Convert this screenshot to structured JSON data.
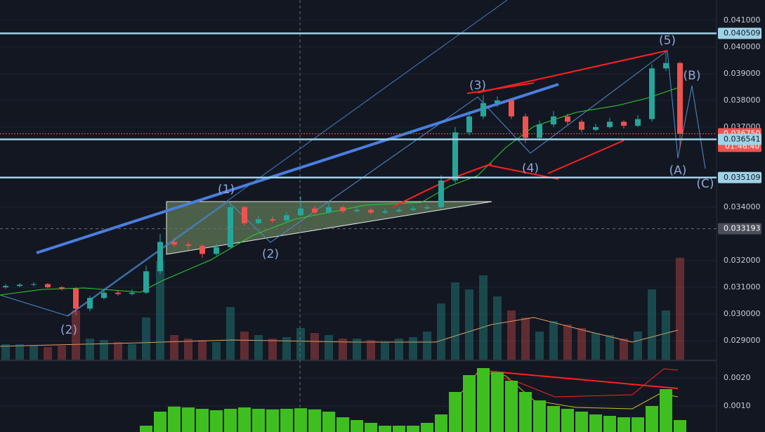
{
  "chart_data": [
    {
      "type": "candlestick",
      "open": [
        0.031,
        0.03105,
        0.0311,
        0.03112,
        0.031,
        0.03095,
        0.0302,
        0.0306,
        0.0308,
        0.03075,
        0.0308,
        0.0316,
        0.0327,
        0.0326,
        0.03255,
        0.03225,
        0.0325,
        0.034,
        0.0334,
        0.03355,
        0.0335,
        0.0337,
        0.03395,
        0.0338,
        0.034,
        0.03385,
        0.0339,
        0.0338,
        0.03385,
        0.0339,
        0.03395,
        0.034,
        0.035,
        0.0368,
        0.0374,
        0.0379,
        0.038,
        0.0374,
        0.0366,
        0.0371,
        0.0374,
        0.0372,
        0.0369,
        0.037,
        0.0372,
        0.03705,
        0.0373,
        0.0392,
        0.0394
      ],
      "high": [
        0.03112,
        0.03115,
        0.03118,
        0.03116,
        0.03105,
        0.031,
        0.03068,
        0.0309,
        0.03088,
        0.03092,
        0.0318,
        0.033,
        0.03285,
        0.0327,
        0.03262,
        0.03262,
        0.03415,
        0.03405,
        0.03368,
        0.03365,
        0.03382,
        0.0344,
        0.03405,
        0.0342,
        0.03408,
        0.034,
        0.03398,
        0.03395,
        0.034,
        0.03405,
        0.0341,
        0.0352,
        0.037,
        0.0376,
        0.0382,
        0.03815,
        0.03808,
        0.0375,
        0.03725,
        0.0376,
        0.0375,
        0.03728,
        0.03712,
        0.03735,
        0.03725,
        0.03745,
        0.03935,
        0.0398,
        0.03945
      ],
      "low": [
        0.03094,
        0.031,
        0.03104,
        0.03096,
        0.03088,
        0.02995,
        0.0301,
        0.03055,
        0.03068,
        0.0307,
        0.03075,
        0.0315,
        0.0325,
        0.0324,
        0.0321,
        0.03218,
        0.03245,
        0.0333,
        0.03335,
        0.0334,
        0.03345,
        0.03365,
        0.0337,
        0.03375,
        0.03378,
        0.0338,
        0.03372,
        0.03375,
        0.0338,
        0.03385,
        0.0339,
        0.03395,
        0.0349,
        0.0367,
        0.0373,
        0.03775,
        0.0373,
        0.0364,
        0.0365,
        0.037,
        0.03705,
        0.0368,
        0.03685,
        0.03695,
        0.03695,
        0.037,
        0.0372,
        0.0391,
        0.0362
      ],
      "close": [
        0.03105,
        0.0311,
        0.03112,
        0.031,
        0.03095,
        0.0302,
        0.0306,
        0.0308,
        0.03075,
        0.0308,
        0.0316,
        0.0327,
        0.0326,
        0.03255,
        0.03225,
        0.0325,
        0.034,
        0.0334,
        0.03355,
        0.0335,
        0.0337,
        0.03395,
        0.0338,
        0.034,
        0.03385,
        0.0339,
        0.0338,
        0.03385,
        0.0339,
        0.03395,
        0.034,
        0.035,
        0.0368,
        0.0374,
        0.0379,
        0.038,
        0.0374,
        0.0366,
        0.0371,
        0.0374,
        0.0372,
        0.0369,
        0.037,
        0.0372,
        0.03705,
        0.0373,
        0.0392,
        0.0394,
        0.03675
      ],
      "volume": [
        22,
        22,
        20,
        18,
        20,
        70,
        30,
        28,
        25,
        22,
        60,
        140,
        35,
        30,
        28,
        25,
        75,
        40,
        35,
        30,
        32,
        45,
        38,
        35,
        30,
        30,
        28,
        26,
        30,
        32,
        40,
        80,
        110,
        100,
        120,
        90,
        70,
        60,
        40,
        55,
        50,
        45,
        38,
        35,
        30,
        40,
        100,
        70,
        145
      ],
      "up_color": "#26a69a",
      "down_color": "#ef5350",
      "ylim": [
        0.02829,
        0.04176
      ],
      "yticks": [
        {
          "value": 0.041,
          "label": "0.041000"
        },
        {
          "value": 0.04,
          "label": "0.040000"
        },
        {
          "value": 0.039,
          "label": "0.039000"
        },
        {
          "value": 0.038,
          "label": "0.038000"
        },
        {
          "value": 0.037,
          "label": "0.037000"
        },
        {
          "value": 0.034,
          "label": "0.034000"
        },
        {
          "value": 0.032,
          "label": "0.032000"
        },
        {
          "value": 0.031,
          "label": "0.031000"
        },
        {
          "value": 0.03,
          "label": "0.030000"
        },
        {
          "value": 0.029,
          "label": "0.029000"
        }
      ],
      "price_labels": [
        {
          "value": 0.040509,
          "label": "0.040509",
          "color": "#9fd3e6",
          "text_color": "#131722",
          "dash": false
        },
        {
          "value": 0.03675,
          "label": "0.036750",
          "color": "#ef5350",
          "text_color": "#ffffff",
          "dash": true
        },
        {
          "value": 0.036541,
          "label": "0.036541",
          "color": "#9fd3e6",
          "text_color": "#131722",
          "dash": false
        },
        {
          "value": 0.035109,
          "label": "0.035109",
          "color": "#9fd3e6",
          "text_color": "#131722",
          "dash": false
        },
        {
          "value": 0.033193,
          "label": "0.033193",
          "color": "#4a4e58",
          "text_color": "#ffffff",
          "dash": true
        }
      ],
      "countdown": "01:46:40",
      "annotations": [
        "(1)",
        "(2)",
        "(2)",
        "(3)",
        "(4)",
        "(5)",
        "(A)",
        "(B)",
        "(C)"
      ],
      "grid": true
    },
    {
      "type": "histogram",
      "values": [
        null,
        null,
        null,
        null,
        null,
        null,
        null,
        null,
        null,
        null,
        0.0003,
        0.0008,
        0.00098,
        0.00095,
        0.0009,
        0.00085,
        0.0009,
        0.00095,
        0.0009,
        0.00088,
        0.0009,
        0.00092,
        0.00088,
        0.0008,
        0.0006,
        0.0005,
        0.0004,
        0.0003,
        0.0003,
        0.0003,
        0.0004,
        0.0007,
        0.0015,
        0.0021,
        0.00235,
        0.0022,
        0.0019,
        0.0015,
        0.0012,
        0.001,
        0.0009,
        0.0008,
        0.0007,
        0.00065,
        0.0006,
        0.0006,
        0.001,
        0.0016,
        0.0005
      ],
      "color": "#3fbf1f",
      "ylim": [
        7.5e-05,
        0.002575
      ],
      "yticks": [
        {
          "value": 0.002,
          "label": "0.0020"
        },
        {
          "value": 0.001,
          "label": "0.0010"
        }
      ],
      "grid": true
    }
  ]
}
